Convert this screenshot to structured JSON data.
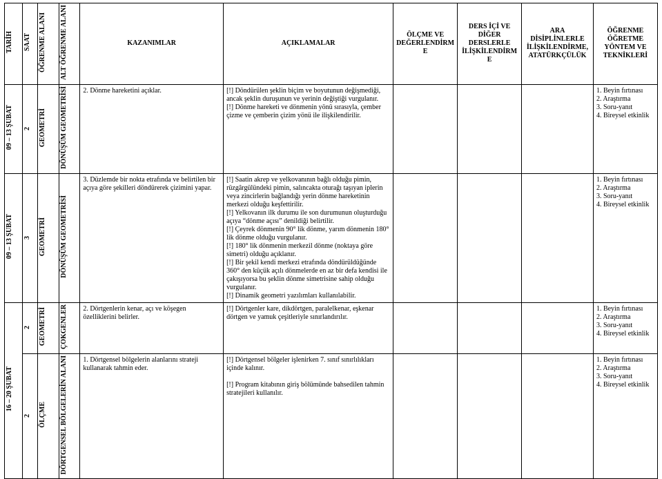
{
  "headers": {
    "tarih": "TARİH",
    "saat": "SAAT",
    "ogrenme": "ÖĞRENME ALANI",
    "alt": "ALT ÖĞRENME ALANI",
    "kazanimlar": "KAZANIMLAR",
    "aciklamalar": "AÇIKLAMALAR",
    "olcme": "ÖLÇME VE DEĞERLENDİRME",
    "ders": "DERS İÇİ VE DİĞER DERSLERLE İLİŞKİLENDİRME",
    "ara": "ARA DİSİPLİNLERLE İLİŞKİLENDİRME, ATATÜRKÇÜLÜK",
    "yontem": "ÖĞRENME ÖĞRETME YÖNTEM VE TEKNİKLERİ"
  },
  "rows": [
    {
      "tarih": "09 – 13 ŞUBAT",
      "saat": "2",
      "ogrenme": "GEOMETRİ",
      "alt": "DÖNÜŞÜM GEOMETRİSİ",
      "kazanim": "2. Dönme hareketini açıklar.",
      "aciklama": "[!] Döndürülen şeklin biçim ve boyutunun değişmediği, ancak şeklin duruşunun ve yerinin değiştiği vurgulanır.\n[!] Dönme hareketi ve dönmenin yönü sırasıyla, çember çizme ve çemberin çizim yönü ile ilişkilendirilir.",
      "yontem": "1. Beyin fırtınası\n2. Araştırma\n3. Soru-yanıt\n4. Bireysel etkinlik"
    },
    {
      "tarih": "09 – 13 ŞUBAT",
      "saat": "3",
      "ogrenme": "GEOMETRİ",
      "alt": "DÖNÜŞÜM GEOMETRİSİ",
      "kazanim": "3. Düzlemde bir nokta etrafında ve belirtilen bir açıya göre şekilleri döndürerek çizimini yapar.",
      "aciklama": "[!] Saatin akrep ve yelkovanının bağlı olduğu pimin, rüzgârgülündeki pimin, salıncakta oturağı taşıyan iplerin veya zincirlerin bağlandığı yerin dönme hareketinin merkezi olduğu keşfettirilir.\n[!] Yelkovanın ilk durumu ile son durumunun oluşturduğu açıya “dönme açısı” denildiği belirtilir.\n[!] Çeyrek dönmenin 90° lik dönme, yarım dönmenin 180° lik dönme olduğu vurgulanır.\n[!] 180° lik dönmenin merkezil dönme (noktaya göre simetri) olduğu açıklanır.\n[!] Bir şekil kendi merkezi etrafında döndürüldüğünde 360° den küçük açılı dönmelerde en az bir defa kendisi ile çakışıyorsa bu şeklin dönme simetrisine sahip olduğu vurgulanır.\n[!] Dinamik geometri yazılımları kullanılabilir.",
      "yontem": "1. Beyin fırtınası\n2. Araştırma\n3. Soru-yanıt\n4. Bireysel etkinlik"
    },
    {
      "tarih": "16 – 20 ŞUBAT",
      "saat": "2",
      "ogrenme": "GEOMETRİ",
      "alt": "ÇOKGENLER",
      "kazanim": "2. Dörtgenlerin kenar, açı ve köşegen özelliklerini belirler.",
      "aciklama": "[!] Dörtgenler kare, dikdörtgen, paralelkenar, eşkenar dörtgen ve yamuk çeşitleriyle sınırlandırılır.",
      "yontem": "1. Beyin fırtınası\n2. Araştırma\n3. Soru-yanıt\n4. Bireysel etkinlik"
    },
    {
      "tarih": "16 – 20 ŞUBAT",
      "saat": "2",
      "ogrenme": "ÖLÇME",
      "alt": "DÖRTGENSEL BÖLGELERİN ALANI",
      "kazanim": "1. Dörtgensel bölgelerin alanlarını strateji kullanarak tahmin eder.",
      "aciklama": "[!] Dörtgensel bölgeler işlenirken 7. sınıf sınırlılıkları içinde kalınır.\n\n[!] Program kitabının giriş bölümünde bahsedilen tahmin stratejileri kullanılır.",
      "yontem": "1. Beyin fırtınası\n2. Araştırma\n3. Soru-yanıt\n4. Bireysel etkinlik"
    }
  ]
}
